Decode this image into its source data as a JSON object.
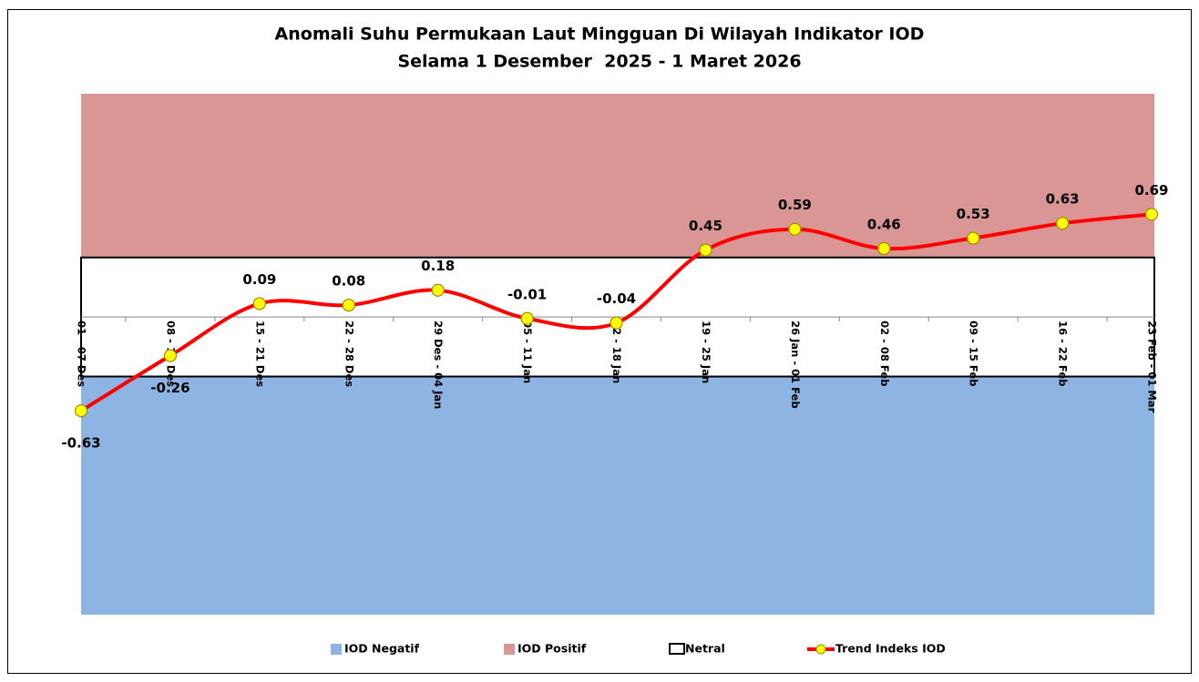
{
  "chart_data": {
    "type": "line",
    "title": "Anomali Suhu Permukaan Laut Mingguan Di Wilayah Indikator IOD",
    "subtitle": "Selama 1 Desember  2025 - 1 Maret 2026",
    "categories": [
      "01 - 07 Des",
      "08 - 14 Des",
      "15 - 21 Des",
      "22 - 28 Des",
      "29 Des - 04 Jan",
      "05 - 11 Jan",
      "12 - 18 Jan",
      "19 - 25 Jan",
      "26 Jan - 01 Feb",
      "02 - 08 Feb",
      "09 - 15 Feb",
      "16 - 22 Feb",
      "23 Feb - 01 Mar"
    ],
    "series": [
      {
        "name": "Trend Indeks IOD",
        "color": "#ff0000",
        "marker_color": "#ffff00",
        "values": [
          -0.63,
          -0.26,
          0.09,
          0.08,
          0.18,
          -0.01,
          -0.04,
          0.45,
          0.59,
          0.46,
          0.53,
          0.63,
          0.69
        ]
      }
    ],
    "bands": [
      {
        "name": "IOD Negatif",
        "color": "#8eb4e3",
        "from": -2,
        "to": -0.4
      },
      {
        "name": "IOD Positif",
        "color": "#d99694",
        "from": 0.4,
        "to": 1.5
      },
      {
        "name": "Netral",
        "color": "#ffffff",
        "from": -0.4,
        "to": 0.4
      }
    ],
    "ylim": [
      -2,
      1.5
    ],
    "smooth": true
  }
}
